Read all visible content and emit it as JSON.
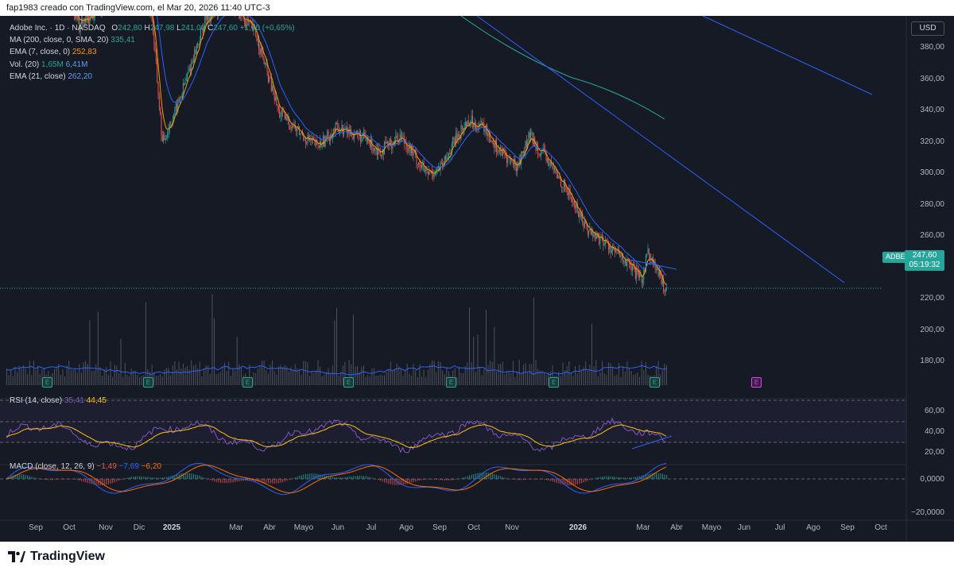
{
  "header": {
    "caption": "fap1983 creado con TradingView.com, el Mar 20, 2026 11:40 UTC-3"
  },
  "legend": {
    "symbol": "Adobe Inc. · 1D · NASDAQ",
    "o_label": "O",
    "o_value": "242,80",
    "h_label": "H",
    "h_value": "247,98",
    "l_label": "L",
    "l_value": "241,00",
    "c_label": "C",
    "c_value": "247,60",
    "change": "+1,60 (+0,65%)",
    "ma_label": "MA (200, close, 0, SMA, 20)",
    "ma_value": "335,41",
    "ema7_label": "EMA (7, close, 0)",
    "ema7_value": "252,83",
    "vol_label": "Vol. (20)",
    "vol_value1": "1,65M",
    "vol_value2": "6,41M",
    "ema21_label": "EMA (21, close)",
    "ema21_value": "262,20"
  },
  "currency_button": "USD",
  "last_price": {
    "ticker": "ADBE",
    "price": "247,60",
    "countdown": "05:19:32"
  },
  "price_axis": [
    "380,00",
    "360,00",
    "340,00",
    "320,00",
    "300,00",
    "280,00",
    "260,00",
    "220,00",
    "200,00",
    "180,00"
  ],
  "rsi": {
    "label": "RSI (14, close)",
    "value1": "35,41",
    "value2": "44,45",
    "axis": [
      "60,00",
      "40,00",
      "20,00"
    ]
  },
  "macd": {
    "label": "MACD (close, 12, 26, 9)",
    "value1": "−1,49",
    "value2": "−7,69",
    "value3": "−6,20",
    "axis": [
      "0,0000",
      "−20,0000"
    ]
  },
  "time_axis": [
    "Sep",
    "Oct",
    "Nov",
    "Dic",
    "2025",
    "Mar",
    "Abr",
    "Mayo",
    "Jun",
    "Jul",
    "Ago",
    "Sep",
    "Oct",
    "Nov",
    "2026",
    "Mar",
    "Abr",
    "Mayo",
    "Jun",
    "Jul",
    "Ago",
    "Sep",
    "Oct"
  ],
  "earnings_icon": "E",
  "footer": {
    "brand": "TradingView"
  },
  "colors": {
    "up": "#26a69a",
    "down": "#ef5350",
    "ema7": "#ff9800",
    "ema21": "#2962ff",
    "ma200": "#26a69a",
    "trendline": "#2962ff"
  }
}
